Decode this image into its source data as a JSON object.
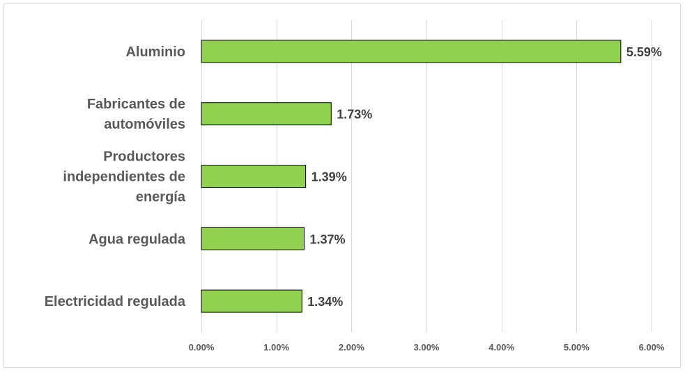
{
  "chart_data": {
    "type": "bar",
    "orientation": "horizontal",
    "categories": [
      [
        "Aluminio"
      ],
      [
        "Fabricantes de",
        "automóviles"
      ],
      [
        "Productores",
        "independientes de",
        "energía"
      ],
      [
        "Agua regulada"
      ],
      [
        "Electricidad regulada"
      ]
    ],
    "values": [
      5.59,
      1.73,
      1.39,
      1.37,
      1.34
    ],
    "value_labels": [
      "5.59%",
      "1.73%",
      "1.39%",
      "1.37%",
      "1.34%"
    ],
    "xlim": [
      0,
      6
    ],
    "xticks": [
      0,
      1,
      2,
      3,
      4,
      5,
      6
    ],
    "xtick_labels": [
      "0.00%",
      "1.00%",
      "2.00%",
      "3.00%",
      "4.00%",
      "5.00%",
      "6.00%"
    ],
    "title": "",
    "xlabel": "",
    "ylabel": "",
    "grid": "vertical",
    "legend": "none",
    "bar_color": "#92d050",
    "bar_border_color": "#000000"
  }
}
